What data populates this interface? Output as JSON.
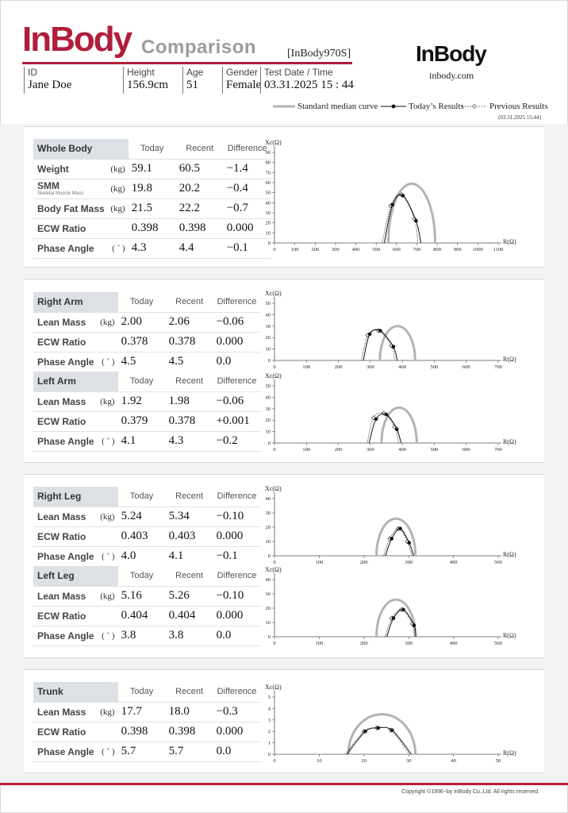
{
  "header": {
    "logo": "InBody",
    "subtitle": "Comparison",
    "model": "[InBody970S]",
    "brand": "InBody",
    "url": "inbody.com"
  },
  "patient": {
    "id_label": "ID",
    "id": "Jane Doe",
    "height_label": "Height",
    "height": "156.9cm",
    "age_label": "Age",
    "age": "51",
    "gender_label": "Gender",
    "gender": "Female",
    "date_label": "Test Date / Time",
    "date": "03.31.2025 15 : 44"
  },
  "legend": {
    "standard": "Standard median curve",
    "today": "Today’s Results",
    "previous": "Previous Results",
    "previous_date": "(03.31.2025 15:44)"
  },
  "columns": {
    "today": "Today",
    "recent": "Recent",
    "difference": "Difference"
  },
  "sections": {
    "whole_body": {
      "title": "Whole Body",
      "rows": [
        {
          "label": "Weight",
          "sub": "",
          "unit": "(kg)",
          "today": "59.1",
          "recent": "60.5",
          "difference": "−1.4"
        },
        {
          "label": "SMM",
          "sub": "Skeletal Muscle Mass",
          "unit": "(kg)",
          "today": "19.8",
          "recent": "20.2",
          "difference": "−0.4"
        },
        {
          "label": "Body Fat Mass",
          "sub": "",
          "unit": "(kg)",
          "today": "21.5",
          "recent": "22.2",
          "difference": "−0.7"
        },
        {
          "label": "ECW Ratio",
          "sub": "",
          "unit": "",
          "today": "0.398",
          "recent": "0.398",
          "difference": "0.000"
        },
        {
          "label": "Phase Angle",
          "sub": "",
          "unit": "( ˚ )",
          "today": "4.3",
          "recent": "4.4",
          "difference": "−0.1"
        }
      ]
    },
    "right_arm": {
      "title": "Right Arm",
      "rows": [
        {
          "label": "Lean Mass",
          "unit": "(kg)",
          "today": "2.00",
          "recent": "2.06",
          "difference": "−0.06"
        },
        {
          "label": "ECW Ratio",
          "unit": "",
          "today": "0.378",
          "recent": "0.378",
          "difference": "0.000"
        },
        {
          "label": "Phase Angle",
          "unit": "( ˚ )",
          "today": "4.5",
          "recent": "4.5",
          "difference": "0.0"
        }
      ]
    },
    "left_arm": {
      "title": "Left Arm",
      "rows": [
        {
          "label": "Lean Mass",
          "unit": "(kg)",
          "today": "1.92",
          "recent": "1.98",
          "difference": "−0.06"
        },
        {
          "label": "ECW Ratio",
          "unit": "",
          "today": "0.379",
          "recent": "0.378",
          "difference": "+0.001"
        },
        {
          "label": "Phase Angle",
          "unit": "( ˚ )",
          "today": "4.1",
          "recent": "4.3",
          "difference": "−0.2"
        }
      ]
    },
    "right_leg": {
      "title": "Right Leg",
      "rows": [
        {
          "label": "Lean Mass",
          "unit": "(kg)",
          "today": "5.24",
          "recent": "5.34",
          "difference": "−0.10"
        },
        {
          "label": "ECW Ratio",
          "unit": "",
          "today": "0.403",
          "recent": "0.403",
          "difference": "0.000"
        },
        {
          "label": "Phase Angle",
          "unit": "( ˚ )",
          "today": "4.0",
          "recent": "4.1",
          "difference": "−0.1"
        }
      ]
    },
    "left_leg": {
      "title": "Left Leg",
      "rows": [
        {
          "label": "Lean Mass",
          "unit": "(kg)",
          "today": "5.16",
          "recent": "5.26",
          "difference": "−0.10"
        },
        {
          "label": "ECW Ratio",
          "unit": "",
          "today": "0.404",
          "recent": "0.404",
          "difference": "0.000"
        },
        {
          "label": "Phase Angle",
          "unit": "( ˚ )",
          "today": "3.8",
          "recent": "3.8",
          "difference": "0.0"
        }
      ]
    },
    "trunk": {
      "title": "Trunk",
      "rows": [
        {
          "label": "Lean Mass",
          "unit": "(kg)",
          "today": "17.7",
          "recent": "18.0",
          "difference": "−0.3"
        },
        {
          "label": "ECW Ratio",
          "unit": "",
          "today": "0.398",
          "recent": "0.398",
          "difference": "0.000"
        },
        {
          "label": "Phase Angle",
          "unit": "( ˚ )",
          "today": "5.7",
          "recent": "5.7",
          "difference": "0.0"
        }
      ]
    }
  },
  "colors": {
    "brand": "#b01e3b",
    "standard_curve": "#b3b3b3",
    "panel_bg": "#f3f3f3",
    "title_cell": "#dde1e6"
  },
  "chart_data": [
    {
      "type": "line",
      "id": "whole_body",
      "xlabel": "R(Ω)",
      "ylabel": "Xc(Ω)",
      "xlim": [
        0,
        1100
      ],
      "ylim": [
        0,
        90
      ],
      "xticks": [
        0,
        100,
        200,
        300,
        400,
        500,
        600,
        700,
        800,
        900,
        1000,
        1100
      ],
      "yticks": [
        0,
        10,
        20,
        30,
        40,
        50,
        60,
        70,
        80,
        90
      ],
      "standard": {
        "r_low": 560,
        "r_high": 790,
        "peak": 59
      },
      "today": {
        "points": [
          [
            580,
            38
          ],
          [
            632,
            47
          ],
          [
            696,
            22
          ]
        ],
        "r_low": 540,
        "r_high": 720
      },
      "previous": {
        "points": [
          [
            572,
            37
          ],
          [
            625,
            48
          ],
          [
            688,
            24
          ]
        ],
        "r_low": 530,
        "r_high": 705
      }
    },
    {
      "type": "line",
      "id": "right_arm",
      "xlabel": "R(Ω)",
      "ylabel": "Xc(Ω)",
      "xlim": [
        0,
        700
      ],
      "ylim": [
        0,
        50
      ],
      "xticks": [
        0,
        100,
        200,
        300,
        400,
        500,
        600,
        700
      ],
      "yticks": [
        0,
        10,
        20,
        30,
        40,
        50
      ],
      "standard": {
        "r_low": 330,
        "r_high": 440,
        "peak": 30
      },
      "today": {
        "points": [
          [
            298,
            23
          ],
          [
            331,
            26
          ],
          [
            372,
            12
          ]
        ],
        "r_low": 278,
        "r_high": 384
      },
      "previous": {
        "points": [
          [
            292,
            22
          ],
          [
            326,
            26
          ],
          [
            366,
            13
          ]
        ],
        "r_low": 272,
        "r_high": 376
      }
    },
    {
      "type": "line",
      "id": "left_arm",
      "xlabel": "R(Ω)",
      "ylabel": "Xc(Ω)",
      "xlim": [
        0,
        700
      ],
      "ylim": [
        0,
        50
      ],
      "xticks": [
        0,
        100,
        200,
        300,
        400,
        500,
        600,
        700
      ],
      "yticks": [
        0,
        10,
        20,
        30,
        40,
        50
      ],
      "standard": {
        "r_low": 335,
        "r_high": 445,
        "peak": 31
      },
      "today": {
        "points": [
          [
            318,
            21
          ],
          [
            350,
            25
          ],
          [
            383,
            12
          ]
        ],
        "r_low": 296,
        "r_high": 396
      },
      "previous": {
        "points": [
          [
            310,
            22
          ],
          [
            342,
            26
          ],
          [
            376,
            14
          ]
        ],
        "r_low": 290,
        "r_high": 389
      }
    },
    {
      "type": "line",
      "id": "right_leg",
      "xlabel": "R(Ω)",
      "ylabel": "Xc(Ω)",
      "xlim": [
        0,
        500
      ],
      "ylim": [
        0,
        40
      ],
      "xticks": [
        0,
        100,
        200,
        300,
        400,
        500
      ],
      "yticks": [
        0,
        10,
        20,
        30,
        40
      ],
      "standard": {
        "r_low": 228,
        "r_high": 315,
        "peak": 26
      },
      "today": {
        "points": [
          [
            262,
            12
          ],
          [
            281,
            19
          ],
          [
            301,
            9
          ]
        ],
        "r_low": 248,
        "r_high": 311
      },
      "previous": {
        "points": [
          [
            258,
            12
          ],
          [
            277,
            19
          ],
          [
            297,
            10
          ]
        ],
        "r_low": 244,
        "r_high": 307
      }
    },
    {
      "type": "line",
      "id": "left_leg",
      "xlabel": "R(Ω)",
      "ylabel": "Xc(Ω)",
      "xlim": [
        0,
        500
      ],
      "ylim": [
        0,
        40
      ],
      "xticks": [
        0,
        100,
        200,
        300,
        400,
        500
      ],
      "yticks": [
        0,
        10,
        20,
        30,
        40
      ],
      "standard": {
        "r_low": 228,
        "r_high": 315,
        "peak": 26
      },
      "today": {
        "points": [
          [
            266,
            13
          ],
          [
            288,
            19
          ],
          [
            312,
            8
          ]
        ],
        "r_low": 251,
        "r_high": 316
      },
      "previous": {
        "points": [
          [
            262,
            13
          ],
          [
            284,
            19
          ],
          [
            308,
            9
          ]
        ],
        "r_low": 247,
        "r_high": 312
      }
    },
    {
      "type": "line",
      "id": "trunk",
      "xlabel": "R(Ω)",
      "ylabel": "Xc(Ω)",
      "xlim": [
        0,
        50
      ],
      "ylim": [
        0,
        5
      ],
      "xticks": [
        0,
        10,
        20,
        30,
        40,
        50
      ],
      "yticks": [
        0,
        1,
        2,
        3,
        4,
        5
      ],
      "standard": {
        "r_low": 16.5,
        "r_high": 31.5,
        "peak": 3.5
      },
      "today": {
        "points": [
          [
            20.3,
            2.0
          ],
          [
            23.2,
            2.3
          ],
          [
            26.3,
            2.1
          ]
        ],
        "r_low": 16.2,
        "r_high": 30.6
      },
      "previous": {
        "points": [
          [
            20.0,
            2.0
          ],
          [
            22.9,
            2.3
          ],
          [
            26.0,
            2.1
          ]
        ],
        "r_low": 15.8,
        "r_high": 30.2
      }
    }
  ],
  "footer": {
    "copyright": "Copyright ©1996~by InBody Co.,Ltd. All rights reserved."
  }
}
